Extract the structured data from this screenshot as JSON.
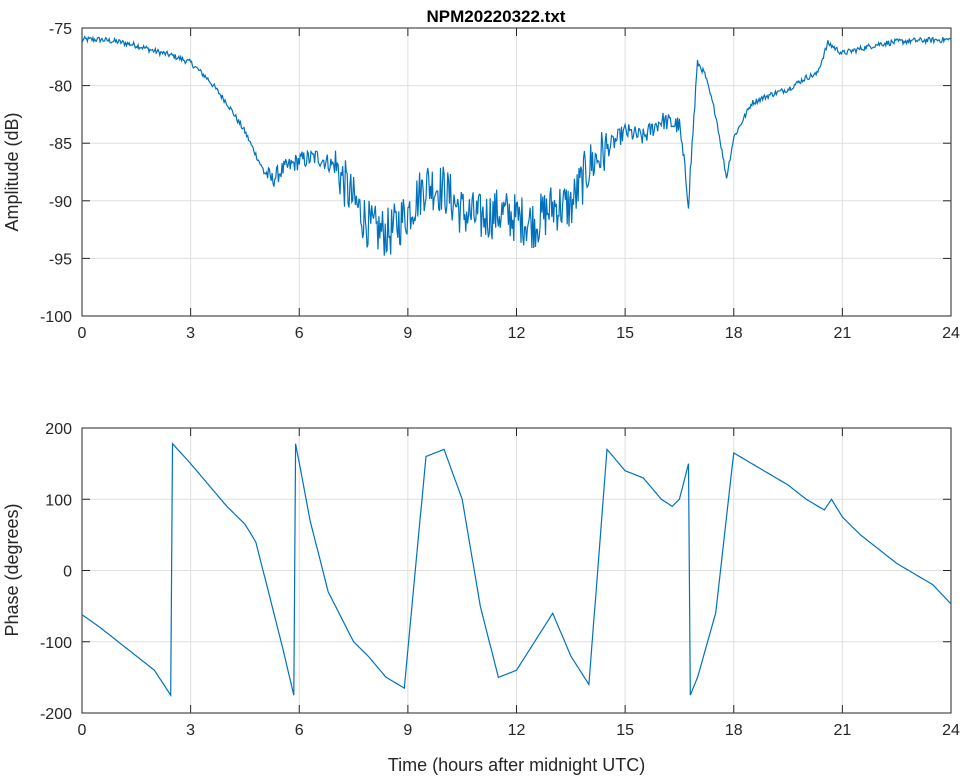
{
  "figure": {
    "title": "NPM20220322.txt"
  },
  "chart_data": [
    {
      "type": "line",
      "title": "NPM20220322.txt",
      "xlabel": "",
      "ylabel": "Amplitude (dB)",
      "xlim": [
        0,
        24
      ],
      "ylim": [
        -100,
        -75
      ],
      "grid": true,
      "color": "#0072BD",
      "x_ticks": [
        "0",
        "3",
        "6",
        "9",
        "12",
        "15",
        "18",
        "21",
        "24"
      ],
      "y_ticks": [
        "-75",
        "-80",
        "-85",
        "-90",
        "-95",
        "-100"
      ],
      "series": [
        {
          "x": [
            0,
            0.5,
            1,
            1.5,
            2,
            2.5,
            3,
            3.5,
            4,
            4.5,
            5,
            5.25,
            5.5,
            6,
            6.5,
            7,
            7.5,
            8,
            8.5,
            9,
            9.5,
            10,
            10.5,
            11,
            11.5,
            12,
            12.5,
            13,
            13.5,
            14,
            14.5,
            15,
            15.5,
            16,
            16.5,
            16.75,
            17,
            17.2,
            17.5,
            17.8,
            18,
            18.5,
            19,
            19.5,
            20,
            20.3,
            20.6,
            21,
            21.5,
            22,
            22.5,
            23,
            24
          ],
          "y": [
            -76,
            -76,
            -76.2,
            -76.5,
            -77,
            -77.4,
            -78,
            -79.5,
            -81.5,
            -84,
            -87.3,
            -88.2,
            -87.4,
            -86.5,
            -86.2,
            -87,
            -90,
            -92.5,
            -92.8,
            -91,
            -88.5,
            -89,
            -91,
            -91.5,
            -91,
            -91.5,
            -92,
            -90.5,
            -90.5,
            -87,
            -85.5,
            -84,
            -84.5,
            -83,
            -83.5,
            -90,
            -78,
            -79,
            -82.5,
            -88,
            -84.5,
            -81.5,
            -80.8,
            -80.3,
            -79.3,
            -79,
            -76.3,
            -77.2,
            -76.8,
            -76.4,
            -76.2,
            -76.1,
            -76
          ]
        }
      ]
    },
    {
      "type": "line",
      "title": "",
      "xlabel": "Time (hours after midnight UTC)",
      "ylabel": "Phase (degrees)",
      "xlim": [
        0,
        24
      ],
      "ylim": [
        -200,
        200
      ],
      "grid": true,
      "color": "#0072BD",
      "x_ticks": [
        "0",
        "3",
        "6",
        "9",
        "12",
        "15",
        "18",
        "21",
        "24"
      ],
      "y_ticks": [
        "200",
        "100",
        "0",
        "-100",
        "-200"
      ],
      "series": [
        {
          "x": [
            0,
            0.5,
            1,
            1.5,
            2,
            2.45,
            2.5,
            3,
            3.5,
            4,
            4.5,
            4.8,
            5,
            5.5,
            5.85,
            5.9,
            6.3,
            6.8,
            7,
            7.5,
            7.9,
            8.4,
            8.9,
            9.5,
            10,
            10.5,
            11,
            11.5,
            12,
            12.5,
            13,
            13.5,
            14,
            14.5,
            15,
            15.5,
            16,
            16.3,
            16.5,
            16.75,
            16.8,
            17,
            17.5,
            18,
            18.5,
            19,
            19.5,
            20,
            20.5,
            20.7,
            21,
            21.5,
            22,
            22.5,
            23,
            23.5,
            24
          ],
          "y": [
            -62,
            -80,
            -100,
            -120,
            -140,
            -175,
            178,
            150,
            120,
            90,
            65,
            40,
            0,
            -100,
            -175,
            178,
            70,
            -30,
            -50,
            -100,
            -120,
            -150,
            -165,
            160,
            170,
            100,
            -50,
            -150,
            -140,
            -100,
            -60,
            -120,
            -160,
            170,
            140,
            130,
            100,
            90,
            100,
            150,
            -175,
            -150,
            -60,
            165,
            150,
            135,
            120,
            100,
            85,
            100,
            75,
            50,
            30,
            10,
            -5,
            -20,
            -47
          ]
        }
      ]
    }
  ]
}
